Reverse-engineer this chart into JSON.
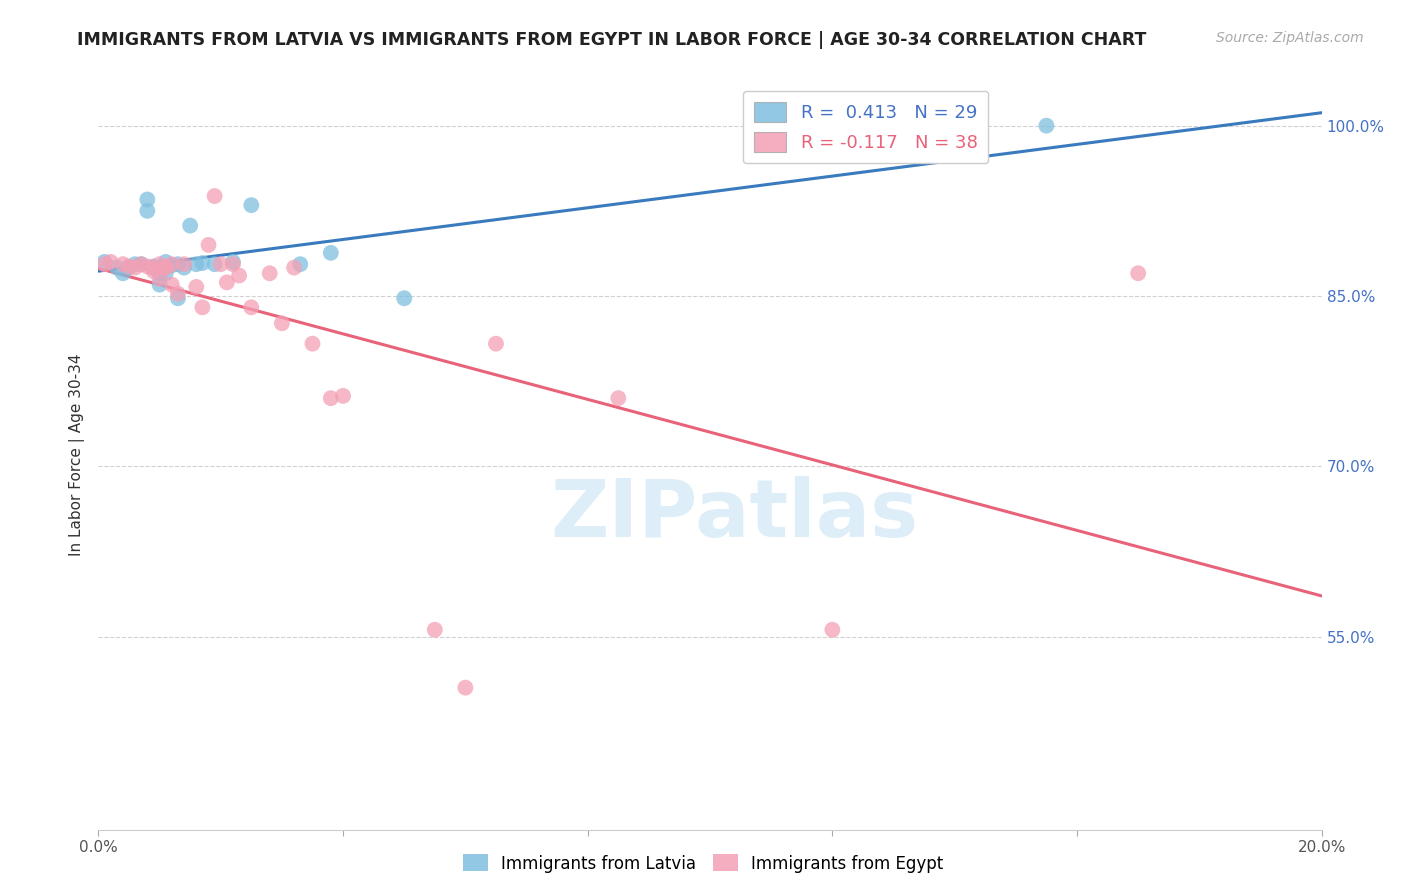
{
  "title": "IMMIGRANTS FROM LATVIA VS IMMIGRANTS FROM EGYPT IN LABOR FORCE | AGE 30-34 CORRELATION CHART",
  "source": "Source: ZipAtlas.com",
  "ylabel": "In Labor Force | Age 30-34",
  "xlim": [
    0.0,
    0.2
  ],
  "ylim": [
    0.38,
    1.04
  ],
  "yticks": [
    0.55,
    0.7,
    0.85,
    1.0
  ],
  "ytick_labels_right": [
    "55.0%",
    "70.0%",
    "85.0%",
    "100.0%"
  ],
  "legend_r_latvia": "R =  0.413",
  "legend_n_latvia": "N = 29",
  "legend_r_egypt": "R = -0.117",
  "legend_n_egypt": "N = 38",
  "latvia_color": "#7fbfdf",
  "egypt_color": "#f4a0b5",
  "latvia_line_color": "#3a7bbf",
  "egypt_line_color": "#e8637a",
  "background_color": "#ffffff",
  "grid_color": "#cccccc",
  "watermark_text": "ZIPatlas",
  "watermark_color": "#ddeef8",
  "latvia_x": [
    0.001,
    0.003,
    0.004,
    0.005,
    0.006,
    0.007,
    0.008,
    0.008,
    0.009,
    0.009,
    0.01,
    0.01,
    0.01,
    0.011,
    0.011,
    0.012,
    0.013,
    0.013,
    0.014,
    0.015,
    0.016,
    0.017,
    0.019,
    0.022,
    0.025,
    0.033,
    0.038,
    0.05,
    0.155
  ],
  "latvia_y": [
    0.88,
    0.875,
    0.87,
    0.875,
    0.878,
    0.878,
    0.925,
    0.935,
    0.876,
    0.875,
    0.875,
    0.87,
    0.86,
    0.88,
    0.87,
    0.877,
    0.878,
    0.848,
    0.875,
    0.912,
    0.878,
    0.879,
    0.878,
    0.88,
    0.93,
    0.878,
    0.888,
    0.848,
    1.0
  ],
  "egypt_x": [
    0.001,
    0.002,
    0.004,
    0.005,
    0.006,
    0.007,
    0.008,
    0.009,
    0.009,
    0.01,
    0.01,
    0.011,
    0.011,
    0.012,
    0.012,
    0.013,
    0.014,
    0.016,
    0.017,
    0.018,
    0.019,
    0.02,
    0.021,
    0.022,
    0.023,
    0.025,
    0.028,
    0.03,
    0.032,
    0.035,
    0.038,
    0.04,
    0.055,
    0.06,
    0.065,
    0.085,
    0.12,
    0.17
  ],
  "egypt_y": [
    0.878,
    0.88,
    0.878,
    0.876,
    0.875,
    0.878,
    0.876,
    0.875,
    0.872,
    0.878,
    0.865,
    0.875,
    0.875,
    0.878,
    0.86,
    0.852,
    0.878,
    0.858,
    0.84,
    0.895,
    0.938,
    0.878,
    0.862,
    0.878,
    0.868,
    0.84,
    0.87,
    0.826,
    0.875,
    0.808,
    0.76,
    0.762,
    0.556,
    0.505,
    0.808,
    0.76,
    0.556,
    0.87
  ]
}
